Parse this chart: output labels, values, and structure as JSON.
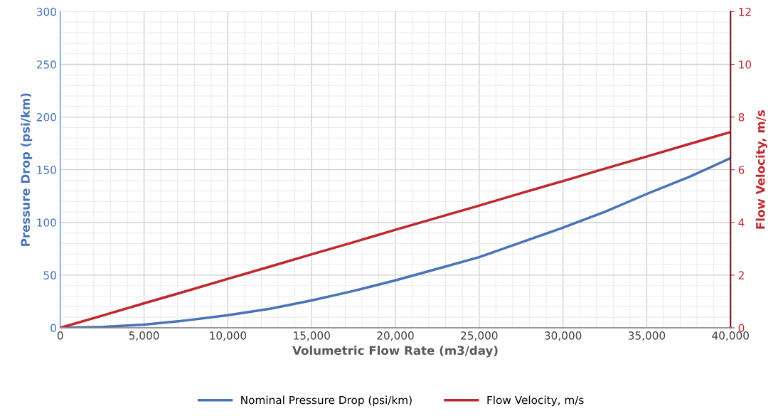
{
  "chart_data": {
    "type": "line",
    "xlabel": "Volumetric Flow Rate (m3/day)",
    "ylabel": "Pressure Drop (psi/km)",
    "y2label": "Flow Velocity, m/s",
    "x": [
      0,
      2500,
      5000,
      7500,
      10000,
      12500,
      15000,
      17500,
      20000,
      22500,
      25000,
      27500,
      30000,
      32500,
      35000,
      37500,
      40000
    ],
    "series": [
      {
        "name": "Nominal Pressure Drop (psi/km)",
        "color": "#4a72b8",
        "values": [
          0,
          0.8,
          3,
          7,
          12,
          18,
          26,
          35,
          45,
          56,
          67,
          81,
          95,
          110,
          127,
          143,
          161
        ]
      },
      {
        "name": "Flow Velocity, m/s",
        "color": "#c0272d",
        "axis": "y2",
        "values": [
          0,
          0.46,
          0.93,
          1.39,
          1.86,
          2.32,
          2.79,
          3.25,
          3.72,
          4.18,
          4.64,
          5.11,
          5.57,
          6.04,
          6.5,
          6.97,
          7.43
        ]
      }
    ],
    "xlim": [
      0,
      40000
    ],
    "xticks": [
      {
        "value": 0,
        "label": "0"
      },
      {
        "value": 5000,
        "label": "5,000"
      },
      {
        "value": 10000,
        "label": "10,000"
      },
      {
        "value": 15000,
        "label": "15,000"
      },
      {
        "value": 20000,
        "label": "20,000"
      },
      {
        "value": 25000,
        "label": "25,000"
      },
      {
        "value": 30000,
        "label": "30,000"
      },
      {
        "value": 35000,
        "label": "35,000"
      },
      {
        "value": 40000,
        "label": "40,000"
      }
    ],
    "ylim": [
      0,
      300
    ],
    "yticks": [
      0,
      50,
      100,
      150,
      200,
      250,
      300
    ],
    "y2lim": [
      0,
      12
    ],
    "y2ticks": [
      0,
      2,
      4,
      6,
      8,
      10,
      12
    ],
    "grid": true,
    "legend": "bottom",
    "marker": "none",
    "line_style": "solid"
  }
}
